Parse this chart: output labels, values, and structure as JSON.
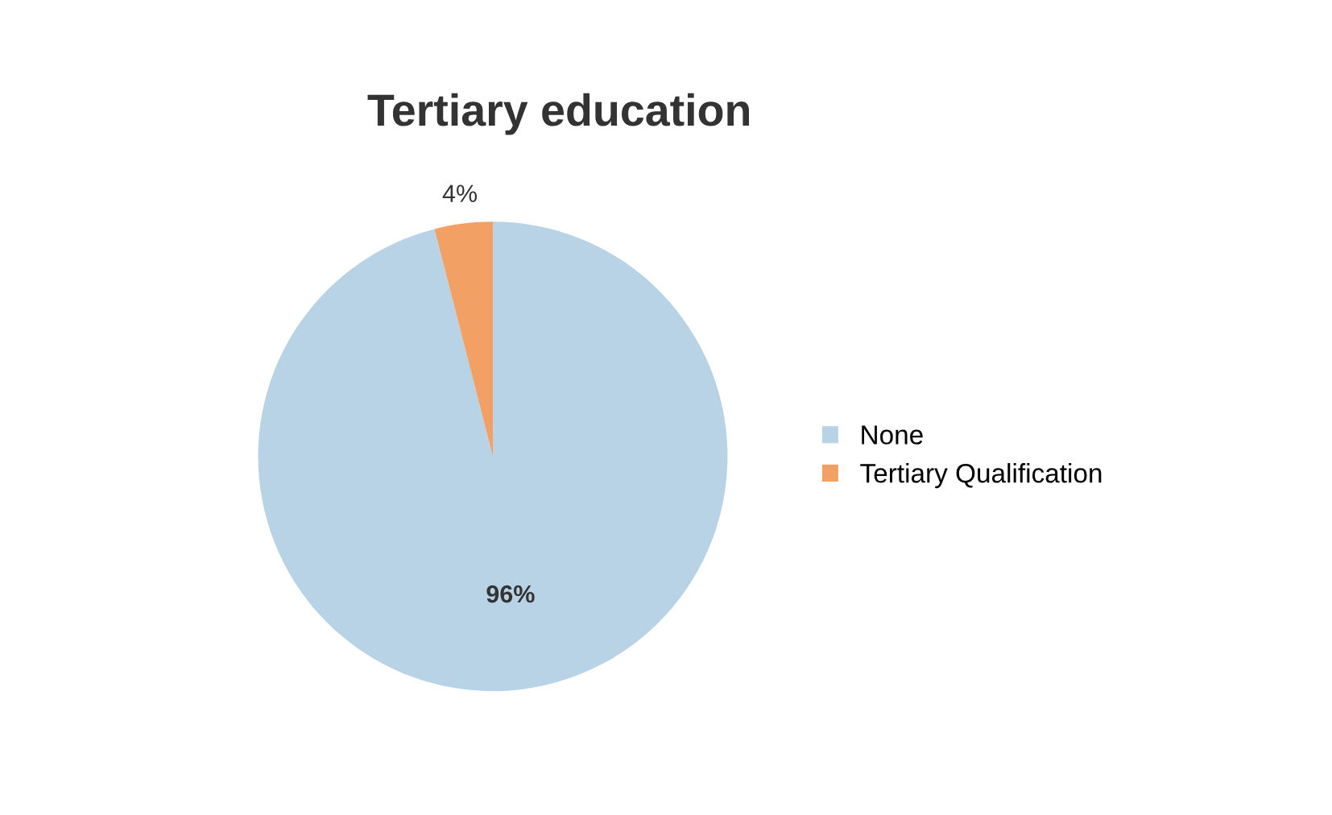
{
  "chart_data": {
    "type": "pie",
    "title": "Tertiary education",
    "categories": [
      "None",
      "Tertiary Qualification"
    ],
    "values": [
      96,
      4
    ],
    "colors": [
      "#b9d3e6",
      "#f2a063"
    ],
    "value_labels": [
      "96%",
      "4%"
    ],
    "legend": "right"
  }
}
